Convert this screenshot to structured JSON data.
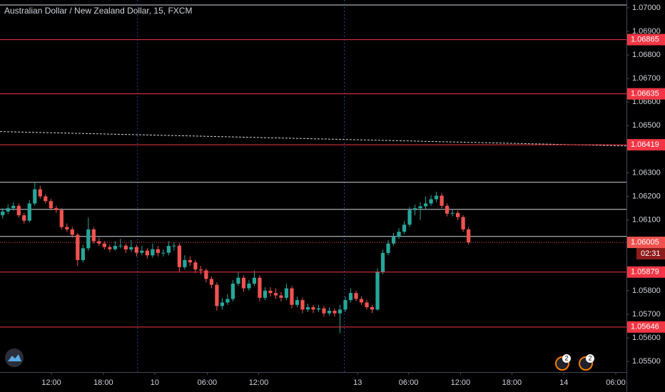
{
  "chart_data": {
    "type": "candlestick",
    "title": "Australian Dollar / New Zealand Dollar, 15, FXCM",
    "up_color": "#26a69a",
    "down_color": "#ef5350",
    "xlim": [
      0,
      117
    ],
    "ylim": [
      1.05455,
      1.07033
    ],
    "grid": false,
    "xticks": [
      {
        "value": 9.6,
        "label": "12:00"
      },
      {
        "value": 19.3,
        "label": "18:00"
      },
      {
        "value": 28.9,
        "label": "10"
      },
      {
        "value": 38.7,
        "label": "06:00"
      },
      {
        "value": 48.3,
        "label": "12:00"
      },
      {
        "value": 66.8,
        "label": "13"
      },
      {
        "value": 76.3,
        "label": "06:00"
      },
      {
        "value": 86,
        "label": "12:00"
      },
      {
        "value": 95.6,
        "label": "18:00"
      },
      {
        "value": 105.3,
        "label": "14"
      },
      {
        "value": 115,
        "label": "06:00"
      }
    ],
    "yticks": [
      {
        "value": 1.07,
        "label": "1.07000"
      },
      {
        "value": 1.069,
        "label": "1.06900"
      },
      {
        "value": 1.068,
        "label": "1.06800"
      },
      {
        "value": 1.067,
        "label": "1.06700"
      },
      {
        "value": 1.066,
        "label": "1.06600"
      },
      {
        "value": 1.065,
        "label": "1.06500"
      },
      {
        "value": 1.063,
        "label": "1.06300"
      },
      {
        "value": 1.062,
        "label": "1.06200"
      },
      {
        "value": 1.061,
        "label": "1.06100"
      },
      {
        "value": 1.058,
        "label": "1.05800"
      },
      {
        "value": 1.057,
        "label": "1.05700"
      },
      {
        "value": 1.056,
        "label": "1.05600"
      },
      {
        "value": 1.055,
        "label": "1.05500"
      }
    ],
    "price_lines": [
      1.06865,
      1.06635,
      1.06419,
      1.05879,
      1.05646
    ],
    "price_line_color": "#f23645",
    "white_lines": [
      1.0626,
      1.06145,
      1.0603
    ],
    "current_price": 1.06005,
    "countdown": "02:31",
    "trend_line": [
      1.06475,
      1.06414
    ],
    "session_breaks": [
      25.7,
      64.3
    ],
    "events": [
      "2",
      "2"
    ],
    "candles": [
      [
        1.0612,
        1.0615,
        1.06105,
        1.06136
      ],
      [
        1.06136,
        1.06165,
        1.06125,
        1.0615
      ],
      [
        1.0615,
        1.06175,
        1.0614,
        1.0616
      ],
      [
        1.0616,
        1.0617,
        1.0611,
        1.0612
      ],
      [
        1.0612,
        1.0613,
        1.06085,
        1.06097
      ],
      [
        1.06097,
        1.06185,
        1.0609,
        1.0617
      ],
      [
        1.0617,
        1.0626,
        1.0616,
        1.0623
      ],
      [
        1.0623,
        1.06245,
        1.0619,
        1.062
      ],
      [
        1.062,
        1.0621,
        1.0617,
        1.0618
      ],
      [
        1.0618,
        1.0619,
        1.0614,
        1.0615
      ],
      [
        1.0615,
        1.0616,
        1.0613,
        1.06142
      ],
      [
        1.06142,
        1.0615,
        1.0606,
        1.0607
      ],
      [
        1.0607,
        1.06085,
        1.0605,
        1.0606
      ],
      [
        1.0606,
        1.0607,
        1.06025,
        1.06037
      ],
      [
        1.06037,
        1.06045,
        1.05905,
        1.0593
      ],
      [
        1.0593,
        1.05995,
        1.0592,
        1.0598
      ],
      [
        1.0598,
        1.0611,
        1.0597,
        1.0606
      ],
      [
        1.0606,
        1.0607,
        1.06,
        1.0601
      ],
      [
        1.0601,
        1.06025,
        1.0599,
        1.06
      ],
      [
        1.06,
        1.0601,
        1.05975,
        1.05985
      ],
      [
        1.05985,
        1.05995,
        1.05965,
        1.05976
      ],
      [
        1.05976,
        1.0601,
        1.0597,
        1.0599
      ],
      [
        1.0599,
        1.0602,
        1.0598,
        1.05991
      ],
      [
        1.05991,
        1.06,
        1.0596,
        1.05975
      ],
      [
        1.05975,
        1.06015,
        1.05965,
        1.05985
      ],
      [
        1.05985,
        1.05995,
        1.05945,
        1.05961
      ],
      [
        1.05961,
        1.0599,
        1.0595,
        1.0597
      ],
      [
        1.0597,
        1.0598,
        1.05935,
        1.0595
      ],
      [
        1.0595,
        1.06,
        1.0594,
        1.05976
      ],
      [
        1.05976,
        1.0599,
        1.05945,
        1.0596
      ],
      [
        1.0596,
        1.05975,
        1.05945,
        1.05961
      ],
      [
        1.05961,
        1.0601,
        1.0595,
        1.0599
      ],
      [
        1.0599,
        1.06005,
        1.0597,
        1.05991
      ],
      [
        1.05991,
        1.06,
        1.0588,
        1.059
      ],
      [
        1.059,
        1.0595,
        1.0589,
        1.0593
      ],
      [
        1.0593,
        1.05945,
        1.05905,
        1.0592
      ],
      [
        1.0592,
        1.0593,
        1.05875,
        1.0589
      ],
      [
        1.0589,
        1.05905,
        1.0587,
        1.05886
      ],
      [
        1.05886,
        1.05895,
        1.05835,
        1.0585
      ],
      [
        1.0585,
        1.0586,
        1.0581,
        1.05825
      ],
      [
        1.05825,
        1.05835,
        1.05715,
        1.05735
      ],
      [
        1.05735,
        1.0577,
        1.0572,
        1.0575
      ],
      [
        1.0575,
        1.05785,
        1.0574,
        1.05765
      ],
      [
        1.05765,
        1.05845,
        1.05755,
        1.0583
      ],
      [
        1.0583,
        1.0588,
        1.0582,
        1.05855
      ],
      [
        1.05855,
        1.05865,
        1.05795,
        1.0581
      ],
      [
        1.0581,
        1.05845,
        1.058,
        1.0583
      ],
      [
        1.0583,
        1.05885,
        1.0582,
        1.05855
      ],
      [
        1.05855,
        1.05865,
        1.05755,
        1.0577
      ],
      [
        1.0577,
        1.05815,
        1.0576,
        1.058
      ],
      [
        1.058,
        1.05815,
        1.05775,
        1.0579
      ],
      [
        1.0579,
        1.0581,
        1.05765,
        1.0578
      ],
      [
        1.0578,
        1.05795,
        1.05755,
        1.0577
      ],
      [
        1.0577,
        1.0583,
        1.0576,
        1.0581
      ],
      [
        1.0581,
        1.0582,
        1.05725,
        1.0574
      ],
      [
        1.0574,
        1.05775,
        1.0573,
        1.0576
      ],
      [
        1.0576,
        1.0577,
        1.05705,
        1.0572
      ],
      [
        1.0572,
        1.05745,
        1.0571,
        1.0573
      ],
      [
        1.0573,
        1.0574,
        1.05705,
        1.0572
      ],
      [
        1.0572,
        1.0574,
        1.0571,
        1.05725
      ],
      [
        1.05725,
        1.05735,
        1.0569,
        1.05704
      ],
      [
        1.05704,
        1.0573,
        1.05695,
        1.05715
      ],
      [
        1.05715,
        1.05725,
        1.0569,
        1.05704
      ],
      [
        1.05704,
        1.0574,
        1.0562,
        1.0572
      ],
      [
        1.0572,
        1.05775,
        1.0571,
        1.0576
      ],
      [
        1.0576,
        1.0581,
        1.0575,
        1.0579
      ],
      [
        1.0579,
        1.058,
        1.05755,
        1.05765
      ],
      [
        1.05765,
        1.05775,
        1.0574,
        1.0575
      ],
      [
        1.0575,
        1.0576,
        1.0572,
        1.0573
      ],
      [
        1.0573,
        1.0574,
        1.05705,
        1.0572
      ],
      [
        1.0572,
        1.05895,
        1.05715,
        1.0588
      ],
      [
        1.0588,
        1.05975,
        1.0587,
        1.0596
      ],
      [
        1.0596,
        1.06015,
        1.0595,
        1.06
      ],
      [
        1.06,
        1.06045,
        1.0599,
        1.0603
      ],
      [
        1.0603,
        1.06065,
        1.0602,
        1.0605
      ],
      [
        1.0605,
        1.06095,
        1.0604,
        1.0608
      ],
      [
        1.0608,
        1.06155,
        1.0607,
        1.06142
      ],
      [
        1.06142,
        1.06165,
        1.0612,
        1.0615
      ],
      [
        1.0615,
        1.06175,
        1.061,
        1.06158
      ],
      [
        1.06158,
        1.062,
        1.06145,
        1.0617
      ],
      [
        1.0617,
        1.06205,
        1.0616,
        1.06188
      ],
      [
        1.06188,
        1.0622,
        1.06175,
        1.06203
      ],
      [
        1.06203,
        1.06215,
        1.0615,
        1.0616
      ],
      [
        1.0616,
        1.0617,
        1.06115,
        1.06127
      ],
      [
        1.06127,
        1.06145,
        1.06115,
        1.0613
      ],
      [
        1.0613,
        1.0614,
        1.061,
        1.06112
      ],
      [
        1.06112,
        1.0612,
        1.0605,
        1.0606
      ],
      [
        1.0606,
        1.0607,
        1.05995,
        1.06005
      ]
    ]
  }
}
